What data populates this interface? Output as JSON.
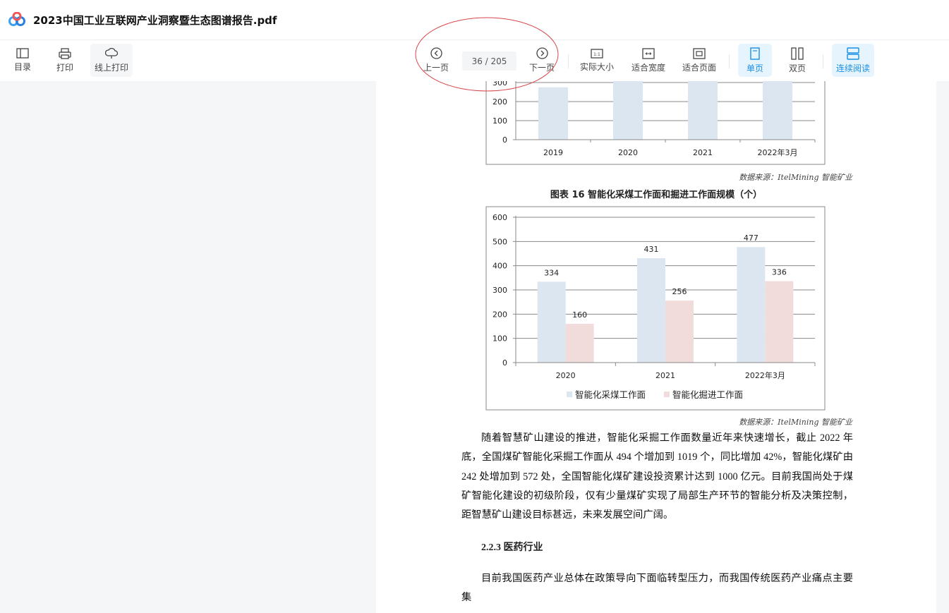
{
  "app": {
    "title": "2023中国工业互联网产业洞察暨生态图谱报告.pdf",
    "logo": "baidu-netdisk-logo"
  },
  "toolbar": {
    "left": [
      {
        "label": "目录",
        "icon": "toc-icon"
      },
      {
        "label": "打印",
        "icon": "printer-icon"
      },
      {
        "label": "线上打印",
        "icon": "cloud-print-icon"
      }
    ],
    "prev_label": "上一页",
    "next_label": "下一页",
    "page_indicator": "36 / 205",
    "view": [
      {
        "label": "实际大小",
        "icon": "actual-size-icon"
      },
      {
        "label": "适合宽度",
        "icon": "fit-width-icon"
      },
      {
        "label": "适合页面",
        "icon": "fit-page-icon"
      }
    ],
    "layout": [
      {
        "label": "单页",
        "icon": "single-page-icon",
        "active": true
      },
      {
        "label": "双页",
        "icon": "double-page-icon",
        "active": false
      }
    ],
    "continuous": {
      "label": "连续阅读",
      "icon": "continuous-read-icon",
      "active": true
    },
    "accent": "#1a8fe3",
    "annotation_color": "#d9464b"
  },
  "document": {
    "source1": "数据来源：ItelMining 智能矿业",
    "caption": "图表 16   智能化采煤工作面和掘进工作面规模（个）",
    "source2": "数据来源：ItelMining 智能矿业",
    "para1": "随着智慧矿山建设的推进，智能化采掘工作面数量近年来快速增长，截止 2022 年底，全国煤矿智能化采掘工作面从 494 个增加到 1019 个，同比增加 42%，智能化煤矿由 242 处增加到 572 处，全国智能化煤矿建设投资累计达到 1000 亿元。目前我国尚处于煤矿智能化建设的初级阶段，仅有少量煤矿实现了局部生产环节的智能分析及决策控制，距智慧矿山建设目标甚远，未来发展空间广阔。",
    "heading": "2.2.3 医药行业",
    "para3": "目前我国医药产业总体在政策导向下面临转型压力，而我国传统医药产业痛点主要集"
  },
  "chart_data": [
    {
      "type": "bar",
      "categories": [
        "2019",
        "2020",
        "2021",
        "2022年3月"
      ],
      "values": [
        275,
        null,
        null,
        null
      ],
      "yticks": [
        "0",
        "100",
        "200",
        "300"
      ],
      "ylim": [
        0,
        300
      ],
      "grid": true,
      "color": "#dce6f1"
    },
    {
      "type": "bar",
      "categories": [
        "2020",
        "2021",
        "2022年3月"
      ],
      "series": [
        {
          "name": "智能化采煤工作面",
          "values": [
            334,
            431,
            477
          ],
          "color": "#dce6f1"
        },
        {
          "name": "智能化掘进工作面",
          "values": [
            160,
            256,
            336
          ],
          "color": "#f2dcdb"
        }
      ],
      "yticks": [
        "0",
        "100",
        "200",
        "300",
        "400",
        "500",
        "600"
      ],
      "ylim": [
        0,
        600
      ],
      "grid": true,
      "legend": "bottom",
      "data_labels": true
    }
  ]
}
